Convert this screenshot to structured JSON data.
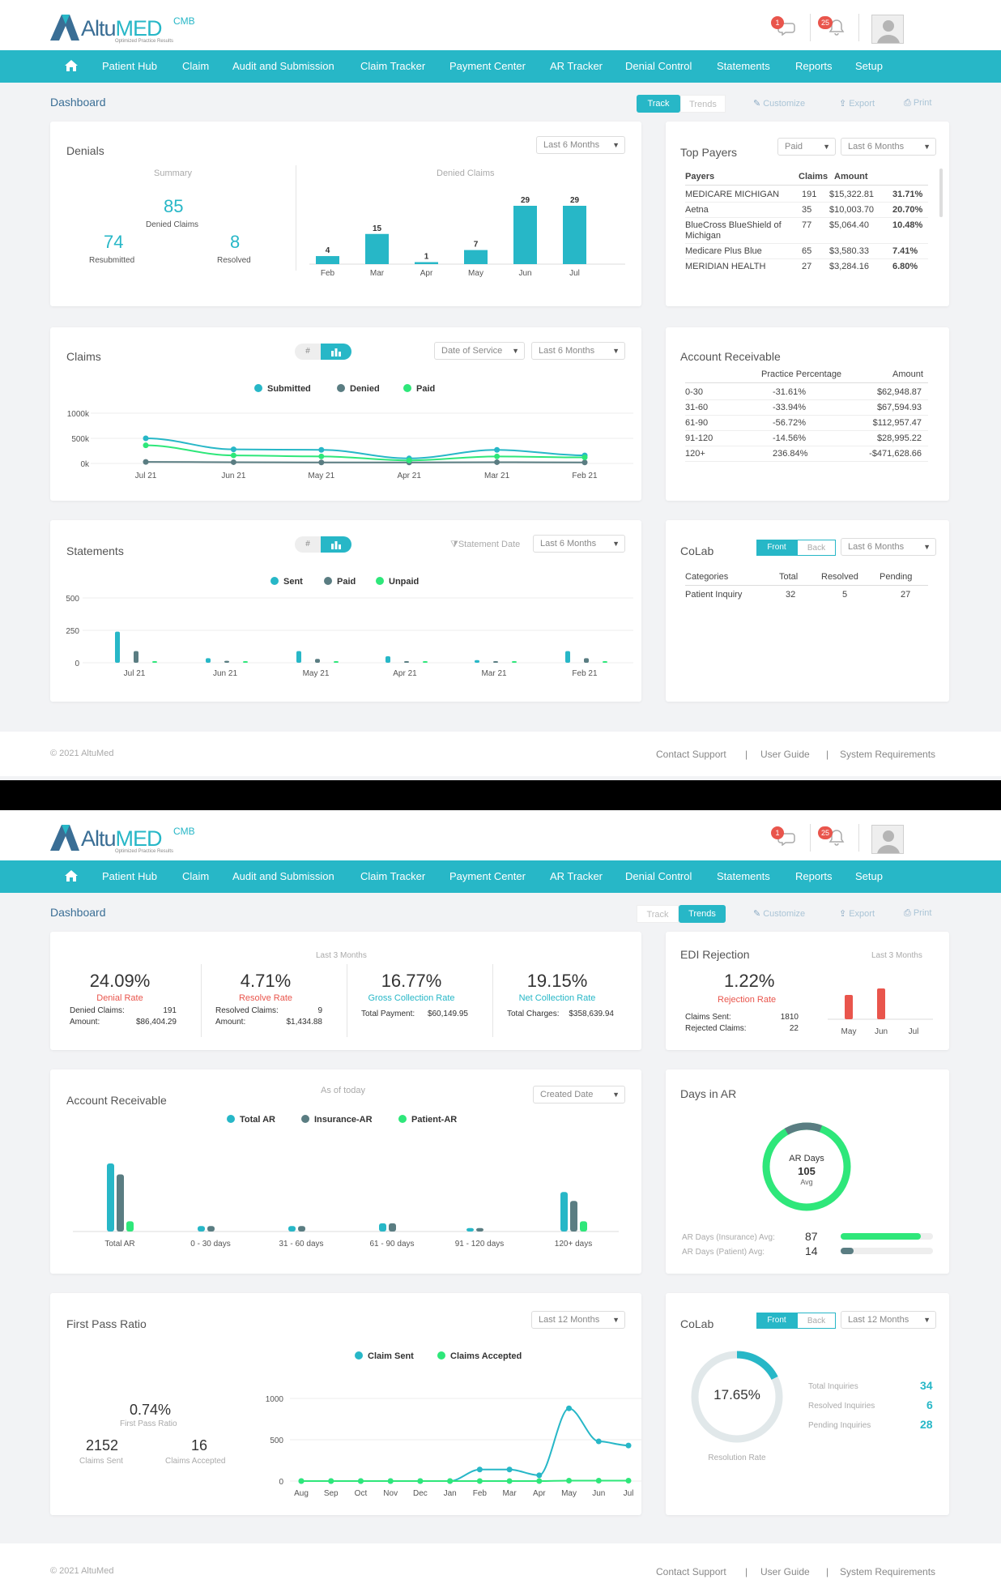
{
  "app": {
    "brand_left": "Altu",
    "brand_right": "MED",
    "tagline": "Optimized Practice Results",
    "cmb": "CMB",
    "msg_badge": "1",
    "notif_badge": "25"
  },
  "nav": [
    "Patient Hub",
    "Claim",
    "Audit and Submission",
    "Claim Tracker",
    "Payment Center",
    "AR Tracker",
    "Denial Control",
    "Statements",
    "Reports",
    "Setup"
  ],
  "page_title": "Dashboard",
  "view_toggle": {
    "track": "Track",
    "trends": "Trends"
  },
  "tools": {
    "customize": "Customize",
    "export": "Export",
    "print": "Print"
  },
  "footer": {
    "copyright": "© 2021 AltuMed",
    "contact": "Contact Support",
    "guide": "User Guide",
    "sysreq": "System Requirements",
    "sep": "|"
  },
  "colors": {
    "accent": "#27b7c7",
    "brand_dark": "#3a6e95",
    "paid": "#5a7d82",
    "green": "#2ee77a",
    "red": "#e9554c"
  },
  "track": {
    "denials": {
      "title": "Denials",
      "filter": "Last 6 Months",
      "summary_label": "Summary",
      "denied_value": "85",
      "denied_label": "Denied Claims",
      "resubmitted_value": "74",
      "resubmitted_label": "Resubmitted",
      "resolved_value": "8",
      "resolved_label": "Resolved",
      "chart_label": "Denied Claims"
    },
    "top_payers": {
      "title": "Top Payers",
      "filter1": "Paid",
      "filter2": "Last 6 Months",
      "headers": [
        "Payers",
        "Claims",
        "Amount",
        ""
      ],
      "rows": [
        [
          "MEDICARE MICHIGAN",
          "191",
          "$15,322.81",
          "31.71%"
        ],
        [
          "Aetna",
          "35",
          "$10,003.70",
          "20.70%"
        ],
        [
          "BlueCross BlueShield of Michigan",
          "77",
          "$5,064.40",
          "10.48%"
        ],
        [
          "Medicare Plus Blue",
          "65",
          "$3,580.33",
          "7.41%"
        ],
        [
          "MERIDIAN HEALTH",
          "27",
          "$3,284.16",
          "6.80%"
        ]
      ]
    },
    "claims": {
      "title": "Claims",
      "filter1": "Date of Service",
      "filter2": "Last 6 Months",
      "legend": [
        "Submitted",
        "Denied",
        "Paid"
      ],
      "y_ticks": [
        "1000k",
        "500k",
        "0k"
      ],
      "toggle_hash": "#"
    },
    "ar": {
      "title": "Account Receivable",
      "headers": [
        "",
        "Practice Percentage",
        "Amount"
      ],
      "rows": [
        [
          "0-30",
          "-31.61%",
          "$62,948.87"
        ],
        [
          "31-60",
          "-33.94%",
          "$67,594.93"
        ],
        [
          "61-90",
          "-56.72%",
          "$112,957.47"
        ],
        [
          "91-120",
          "-14.56%",
          "$28,995.22"
        ],
        [
          "120+",
          "236.84%",
          "-$471,628.66"
        ]
      ]
    },
    "statements": {
      "title": "Statements",
      "filter_label": "Statement Date",
      "filter": "Last 6 Months",
      "legend": [
        "Sent",
        "Paid",
        "Unpaid"
      ],
      "y_ticks": [
        "500",
        "250",
        "0"
      ],
      "toggle_hash": "#"
    },
    "colab": {
      "title": "CoLab",
      "front": "Front",
      "back": "Back",
      "filter": "Last 6 Months",
      "headers": [
        "Categories",
        "Total",
        "Resolved",
        "Pending"
      ],
      "rows": [
        [
          "Patient Inquiry",
          "32",
          "5",
          "27"
        ]
      ]
    }
  },
  "trends": {
    "kpis": {
      "period": "Last 3 Months",
      "items": [
        {
          "value": "24.09%",
          "label": "Denial Rate",
          "r1k": "Denied Claims:",
          "r1v": "191",
          "r2k": "Amount:",
          "r2v": "$86,404.29"
        },
        {
          "value": "4.71%",
          "label": "Resolve Rate",
          "r1k": "Resolved Claims:",
          "r1v": "9",
          "r2k": "Amount:",
          "r2v": "$1,434.88"
        },
        {
          "value": "16.77%",
          "label": "Gross Collection Rate",
          "r1k": "Total Payment:",
          "r1v": "$60,149.95"
        },
        {
          "value": "19.15%",
          "label": "Net Collection Rate",
          "r1k": "Total Charges:",
          "r1v": "$358,639.94"
        }
      ]
    },
    "edi": {
      "title": "EDI Rejection",
      "period": "Last 3 Months",
      "value": "1.22%",
      "label": "Rejection Rate",
      "r1k": "Claims Sent:",
      "r1v": "1810",
      "r2k": "Rejected Claims:",
      "r2v": "22"
    },
    "ar": {
      "title": "Account Receivable",
      "as_of": "As of today",
      "filter": "Created Date",
      "legend": [
        "Total AR",
        "Insurance-AR",
        "Patient-AR"
      ]
    },
    "days_ar": {
      "title": "Days in AR",
      "center_label": "AR Days",
      "center_value": "105",
      "center_sub": "Avg",
      "ins_label": "AR Days (Insurance) Avg:",
      "ins_value": "87",
      "ins_fill": 0.87,
      "pat_label": "AR Days (Patient) Avg:",
      "pat_value": "14",
      "pat_fill": 0.14
    },
    "fpr": {
      "title": "First Pass Ratio",
      "filter": "Last 12 Months",
      "ratio": "0.74%",
      "ratio_label": "First Pass Ratio",
      "sent": "2152",
      "sent_label": "Claims Sent",
      "accepted": "16",
      "accepted_label": "Claims Accepted",
      "legend": [
        "Claim Sent",
        "Claims Accepted"
      ]
    },
    "colab": {
      "title": "CoLab",
      "front": "Front",
      "back": "Back",
      "filter": "Last 12 Months",
      "rate": "17.65%",
      "rate_label": "Resolution Rate",
      "total_label": "Total Inquiries",
      "total": "34",
      "resolved_label": "Resolved Inquiries",
      "resolved": "6",
      "pending_label": "Pending Inquiries",
      "pending": "28",
      "rate_fill": 0.1765
    }
  },
  "chart_data": [
    {
      "type": "bar",
      "title": "Denied Claims",
      "categories": [
        "Feb",
        "Mar",
        "Apr",
        "May",
        "Jun",
        "Jul"
      ],
      "values": [
        4,
        15,
        1,
        7,
        29,
        29
      ]
    },
    {
      "type": "line",
      "title": "Claims",
      "x": [
        "Jul 21",
        "Jun 21",
        "May 21",
        "Apr 21",
        "Mar 21",
        "Feb 21"
      ],
      "ylim": [
        0,
        1000
      ],
      "y_unit": "k",
      "y_ticks": [
        "0k",
        "500k",
        "1000k"
      ],
      "series": [
        {
          "name": "Submitted",
          "values": [
            500,
            280,
            270,
            100,
            270,
            160
          ]
        },
        {
          "name": "Denied",
          "values": [
            30,
            25,
            20,
            20,
            25,
            20
          ]
        },
        {
          "name": "Paid",
          "values": [
            360,
            160,
            140,
            60,
            140,
            120
          ]
        }
      ]
    },
    {
      "type": "bar",
      "title": "Statements",
      "categories": [
        "Jul 21",
        "Jun 21",
        "May 21",
        "Apr 21",
        "Mar 21",
        "Feb 21"
      ],
      "ylim": [
        0,
        500
      ],
      "y_ticks": [
        "0",
        "250",
        "500"
      ],
      "series": [
        {
          "name": "Sent",
          "values": [
            240,
            35,
            90,
            50,
            20,
            90
          ]
        },
        {
          "name": "Paid",
          "values": [
            90,
            15,
            30,
            0,
            5,
            35
          ]
        },
        {
          "name": "Unpaid",
          "values": [
            5,
            5,
            10,
            0,
            0,
            10
          ]
        }
      ]
    },
    {
      "type": "bar",
      "categories": [
        "May",
        "Jun",
        "Jul"
      ],
      "values": [
        15,
        19,
        0
      ]
    },
    {
      "type": "bar",
      "title": "Account Receivable",
      "categories": [
        "Total AR",
        "0 - 30 days",
        "31 - 60 days",
        "61 - 90 days",
        "91 - 120 days",
        "120+ days"
      ],
      "series": [
        {
          "name": "Total AR",
          "values": [
            100,
            8,
            8,
            12,
            5,
            58
          ]
        },
        {
          "name": "Insurance-AR",
          "values": [
            84,
            8,
            8,
            12,
            5,
            45
          ]
        },
        {
          "name": "Patient-AR",
          "values": [
            15,
            0,
            0,
            0,
            0,
            15
          ]
        }
      ]
    },
    {
      "type": "line",
      "title": "First Pass Ratio",
      "x": [
        "Aug",
        "Sep",
        "Oct",
        "Nov",
        "Dec",
        "Jan",
        "Feb",
        "Mar",
        "Apr",
        "May",
        "Jun",
        "Jul"
      ],
      "ylim": [
        0,
        1000
      ],
      "y_ticks": [
        "0",
        "500",
        "1000"
      ],
      "series": [
        {
          "name": "Claim Sent",
          "values": [
            0,
            0,
            0,
            0,
            0,
            0,
            140,
            140,
            70,
            880,
            480,
            430
          ]
        },
        {
          "name": "Claims Accepted",
          "values": [
            0,
            0,
            0,
            0,
            0,
            0,
            0,
            0,
            0,
            5,
            5,
            5
          ]
        }
      ]
    }
  ]
}
